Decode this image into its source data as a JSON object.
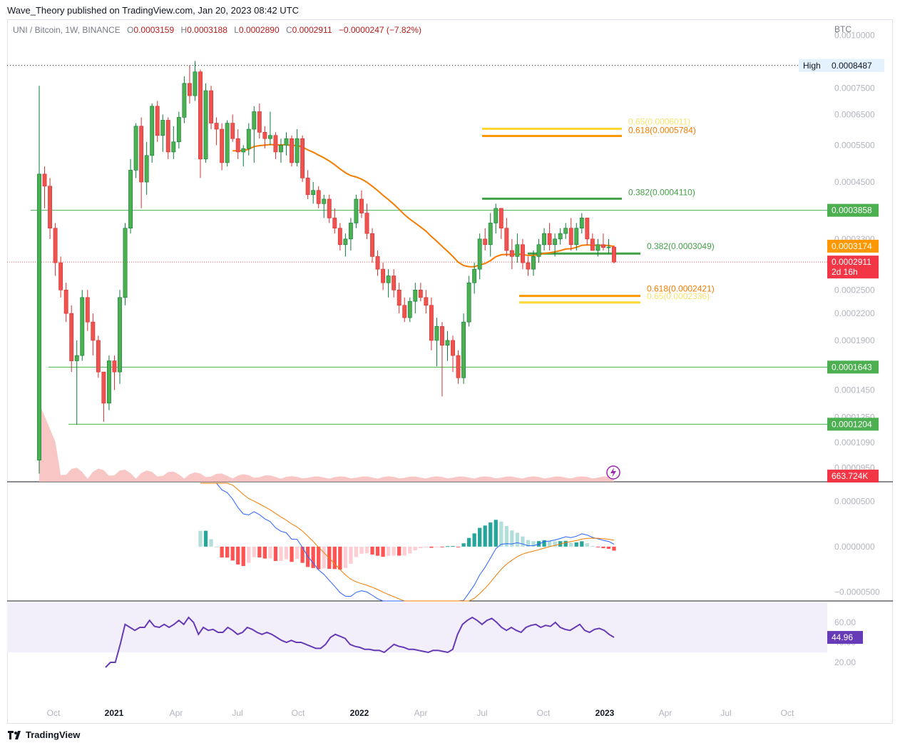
{
  "publisher": "Wave_Theory published on TradingView.com, Jan 20, 2023 08:42 UTC",
  "footer_brand": "TradingView",
  "header": {
    "symbol": "UNI / Bitcoin, 1W, BINANCE",
    "open_label": "O",
    "open": "0.0003159",
    "high_label": "H",
    "high": "0.0003188",
    "low_label": "L",
    "low": "0.0002890",
    "close_label": "C",
    "close": "0.0002911",
    "change": "−0.0000247 (−7.82%)"
  },
  "colors": {
    "up": "#26a69a",
    "up_body": "#0d7a3a",
    "down": "#ef5350",
    "down_body": "#d32f2f",
    "ema": "#f57c00",
    "fib_green": "#43a047",
    "fib_orange": "#ff9800",
    "fib_yellow": "#fdd835",
    "support": "#4caf50",
    "macd": "#2962ff",
    "signal": "#f57c00",
    "rsi": "#673ab7",
    "rsi_band": "#f3effa"
  },
  "chart_data": {
    "type": "candlestick",
    "price_scale": "log",
    "currency_label": "BTC",
    "x_ticks": [
      "Oct",
      "2021",
      "Apr",
      "Jul",
      "Oct",
      "2022",
      "Apr",
      "Jul",
      "Oct",
      "2023",
      "Apr",
      "Jul",
      "Oct"
    ],
    "price_ticks": [
      "0.0010000",
      "0.0007500",
      "0.0006500",
      "0.0005500",
      "0.0004500",
      "0.0003300",
      "0.0002500",
      "0.0002200",
      "0.0001900",
      "0.0001450",
      "0.0001250",
      "0.0001090",
      "0.0000950"
    ],
    "price_labels": [
      {
        "text": "High",
        "value": "0.0008487",
        "style": "high"
      },
      {
        "text": "",
        "value": "0.0003858",
        "style": "green"
      },
      {
        "text": "",
        "value": "0.0003174",
        "style": "orange"
      },
      {
        "text": "2d 16h",
        "value": "0.0002911",
        "style": "red"
      },
      {
        "text": "",
        "value": "0.0001643",
        "style": "green"
      },
      {
        "text": "",
        "value": "0.0001204",
        "style": "green"
      },
      {
        "text": "",
        "value": "663.724K",
        "style": "red"
      }
    ],
    "fib_levels": [
      {
        "label": "0.65(0.0006011)",
        "value": 0.0006011,
        "color": "yellow"
      },
      {
        "label": "0.618(0.0005784)",
        "value": 0.0005784,
        "color": "orange"
      },
      {
        "label": "0.382(0.0004110)",
        "value": 0.000411,
        "color": "green"
      },
      {
        "label": "0.382(0.0003049)",
        "value": 0.0003049,
        "color": "green"
      },
      {
        "label": "0.618(0.0002421)",
        "value": 0.0002421,
        "color": "orange"
      },
      {
        "label": "0.65(0.0002336)",
        "value": 0.0002336,
        "color": "yellow"
      }
    ],
    "horizontal_levels": [
      0.0003858,
      0.0001643,
      0.0001204
    ],
    "all_time_high": 0.0008487,
    "last_price": 0.0002911,
    "ema_last": 0.0003174,
    "candles": [
      {
        "o": 9.9e-05,
        "h": 0.00076,
        "l": 9.2e-05,
        "c": 0.00047
      },
      {
        "o": 0.00047,
        "h": 0.00049,
        "l": 0.00039,
        "c": 0.00044
      },
      {
        "o": 0.00044,
        "h": 0.00046,
        "l": 0.00033,
        "c": 0.00035
      },
      {
        "o": 0.00035,
        "h": 0.00036,
        "l": 0.00027,
        "c": 0.00029
      },
      {
        "o": 0.00029,
        "h": 0.0003,
        "l": 0.00024,
        "c": 0.00025
      },
      {
        "o": 0.00025,
        "h": 0.00026,
        "l": 0.00021,
        "c": 0.00022
      },
      {
        "o": 0.00022,
        "h": 0.00023,
        "l": 0.00016,
        "c": 0.00017
      },
      {
        "o": 0.00017,
        "h": 0.00019,
        "l": 0.00012,
        "c": 0.000175
      },
      {
        "o": 0.000175,
        "h": 0.00025,
        "l": 0.00017,
        "c": 0.00024
      },
      {
        "o": 0.00024,
        "h": 0.00025,
        "l": 0.0002,
        "c": 0.00021
      },
      {
        "o": 0.00021,
        "h": 0.00022,
        "l": 0.000175,
        "c": 0.00019
      },
      {
        "o": 0.00019,
        "h": 0.000195,
        "l": 0.000155,
        "c": 0.00016
      },
      {
        "o": 0.00016,
        "h": 0.00016,
        "l": 0.000122,
        "c": 0.000135
      },
      {
        "o": 0.000135,
        "h": 0.000175,
        "l": 0.00013,
        "c": 0.00017
      },
      {
        "o": 0.00017,
        "h": 0.000175,
        "l": 0.000145,
        "c": 0.00016
      },
      {
        "o": 0.00016,
        "h": 0.00025,
        "l": 0.00015,
        "c": 0.00024
      },
      {
        "o": 0.00024,
        "h": 0.00036,
        "l": 0.00023,
        "c": 0.00035
      },
      {
        "o": 0.00035,
        "h": 0.00051,
        "l": 0.00034,
        "c": 0.00048
      },
      {
        "o": 0.00048,
        "h": 0.00062,
        "l": 0.00046,
        "c": 0.00061
      },
      {
        "o": 0.00061,
        "h": 0.00064,
        "l": 0.00039,
        "c": 0.00045
      },
      {
        "o": 0.00045,
        "h": 0.00056,
        "l": 0.00042,
        "c": 0.00052
      },
      {
        "o": 0.00052,
        "h": 0.00069,
        "l": 0.0005,
        "c": 0.00068
      },
      {
        "o": 0.00068,
        "h": 0.0007,
        "l": 0.00056,
        "c": 0.00058
      },
      {
        "o": 0.00058,
        "h": 0.00065,
        "l": 0.00053,
        "c": 0.00063
      },
      {
        "o": 0.00063,
        "h": 0.00064,
        "l": 0.00051,
        "c": 0.00053
      },
      {
        "o": 0.00053,
        "h": 0.00061,
        "l": 0.00051,
        "c": 0.00056
      },
      {
        "o": 0.00056,
        "h": 0.00066,
        "l": 0.00054,
        "c": 0.00064
      },
      {
        "o": 0.00064,
        "h": 0.0008,
        "l": 0.00062,
        "c": 0.00077
      },
      {
        "o": 0.00077,
        "h": 0.00085,
        "l": 0.00069,
        "c": 0.00072
      },
      {
        "o": 0.00072,
        "h": 0.00087,
        "l": 0.0007,
        "c": 0.00082
      },
      {
        "o": 0.00082,
        "h": 0.00083,
        "l": 0.00046,
        "c": 0.00051
      },
      {
        "o": 0.00051,
        "h": 0.00077,
        "l": 0.0005,
        "c": 0.00074
      },
      {
        "o": 0.00074,
        "h": 0.00076,
        "l": 0.0006,
        "c": 0.00062
      },
      {
        "o": 0.00062,
        "h": 0.00064,
        "l": 0.00055,
        "c": 0.0006
      },
      {
        "o": 0.0006,
        "h": 0.00062,
        "l": 0.00048,
        "c": 0.0005
      },
      {
        "o": 0.0005,
        "h": 0.00063,
        "l": 0.00049,
        "c": 0.00062
      },
      {
        "o": 0.00062,
        "h": 0.00065,
        "l": 0.00056,
        "c": 0.00057
      },
      {
        "o": 0.00057,
        "h": 0.0006,
        "l": 0.00051,
        "c": 0.00053
      },
      {
        "o": 0.00053,
        "h": 0.00055,
        "l": 0.00049,
        "c": 0.00054
      },
      {
        "o": 0.00054,
        "h": 0.00062,
        "l": 0.00052,
        "c": 0.0006
      },
      {
        "o": 0.0006,
        "h": 0.00068,
        "l": 0.0005,
        "c": 0.00066
      },
      {
        "o": 0.00066,
        "h": 0.00069,
        "l": 0.00057,
        "c": 0.00059
      },
      {
        "o": 0.00059,
        "h": 0.00061,
        "l": 0.00054,
        "c": 0.00057
      },
      {
        "o": 0.00057,
        "h": 0.00066,
        "l": 0.00055,
        "c": 0.00058
      },
      {
        "o": 0.00058,
        "h": 0.00059,
        "l": 0.00051,
        "c": 0.00053
      },
      {
        "o": 0.00053,
        "h": 0.00057,
        "l": 0.0005,
        "c": 0.00055
      },
      {
        "o": 0.00055,
        "h": 0.00059,
        "l": 0.00052,
        "c": 0.00057
      },
      {
        "o": 0.00057,
        "h": 0.00058,
        "l": 0.00049,
        "c": 0.0005
      },
      {
        "o": 0.0005,
        "h": 0.0006,
        "l": 0.00049,
        "c": 0.00057
      },
      {
        "o": 0.00057,
        "h": 0.00058,
        "l": 0.00045,
        "c": 0.00046
      },
      {
        "o": 0.00046,
        "h": 0.00048,
        "l": 0.00041,
        "c": 0.00042
      },
      {
        "o": 0.00042,
        "h": 0.00045,
        "l": 0.0004,
        "c": 0.00043
      },
      {
        "o": 0.00043,
        "h": 0.00044,
        "l": 0.00039,
        "c": 0.0004
      },
      {
        "o": 0.0004,
        "h": 0.00042,
        "l": 0.00037,
        "c": 0.00041
      },
      {
        "o": 0.00041,
        "h": 0.00042,
        "l": 0.00036,
        "c": 0.00037
      },
      {
        "o": 0.00037,
        "h": 0.00039,
        "l": 0.00034,
        "c": 0.00035
      },
      {
        "o": 0.00035,
        "h": 0.00036,
        "l": 0.00031,
        "c": 0.00032
      },
      {
        "o": 0.00032,
        "h": 0.00034,
        "l": 0.0003,
        "c": 0.00033
      },
      {
        "o": 0.00033,
        "h": 0.00037,
        "l": 0.00031,
        "c": 0.00036
      },
      {
        "o": 0.00036,
        "h": 0.00042,
        "l": 0.00035,
        "c": 0.00041
      },
      {
        "o": 0.00041,
        "h": 0.00043,
        "l": 0.00037,
        "c": 0.00038
      },
      {
        "o": 0.00038,
        "h": 0.0004,
        "l": 0.00033,
        "c": 0.00034
      },
      {
        "o": 0.00034,
        "h": 0.00035,
        "l": 0.00029,
        "c": 0.0003
      },
      {
        "o": 0.0003,
        "h": 0.00031,
        "l": 0.00027,
        "c": 0.00028
      },
      {
        "o": 0.00028,
        "h": 0.00029,
        "l": 0.00025,
        "c": 0.00026
      },
      {
        "o": 0.00026,
        "h": 0.00028,
        "l": 0.00024,
        "c": 0.00027
      },
      {
        "o": 0.00027,
        "h": 0.00028,
        "l": 0.00024,
        "c": 0.00025
      },
      {
        "o": 0.00025,
        "h": 0.00026,
        "l": 0.00022,
        "c": 0.00023
      },
      {
        "o": 0.00023,
        "h": 0.00024,
        "l": 0.00021,
        "c": 0.000215
      },
      {
        "o": 0.000215,
        "h": 0.00024,
        "l": 0.00021,
        "c": 0.000235
      },
      {
        "o": 0.000235,
        "h": 0.00026,
        "l": 0.00022,
        "c": 0.00025
      },
      {
        "o": 0.00025,
        "h": 0.00026,
        "l": 0.000235,
        "c": 0.00024
      },
      {
        "o": 0.00024,
        "h": 0.00025,
        "l": 0.00022,
        "c": 0.00023
      },
      {
        "o": 0.00023,
        "h": 0.00024,
        "l": 0.00018,
        "c": 0.00019
      },
      {
        "o": 0.00019,
        "h": 0.000215,
        "l": 0.000165,
        "c": 0.000205
      },
      {
        "o": 0.000205,
        "h": 0.00021,
        "l": 0.00014,
        "c": 0.000185
      },
      {
        "o": 0.000185,
        "h": 0.0002,
        "l": 0.00017,
        "c": 0.00019
      },
      {
        "o": 0.00019,
        "h": 0.000195,
        "l": 0.00016,
        "c": 0.000175
      },
      {
        "o": 0.000175,
        "h": 0.00018,
        "l": 0.00015,
        "c": 0.000155
      },
      {
        "o": 0.000155,
        "h": 0.00022,
        "l": 0.00015,
        "c": 0.00021
      },
      {
        "o": 0.00021,
        "h": 0.00027,
        "l": 0.000205,
        "c": 0.00026
      },
      {
        "o": 0.00026,
        "h": 0.00029,
        "l": 0.000245,
        "c": 0.00028
      },
      {
        "o": 0.00028,
        "h": 0.00034,
        "l": 0.000265,
        "c": 0.00033
      },
      {
        "o": 0.00033,
        "h": 0.00035,
        "l": 0.00031,
        "c": 0.00032
      },
      {
        "o": 0.00032,
        "h": 0.00038,
        "l": 0.0003,
        "c": 0.00036
      },
      {
        "o": 0.00036,
        "h": 0.0004,
        "l": 0.00034,
        "c": 0.00039
      },
      {
        "o": 0.00039,
        "h": 0.00039,
        "l": 0.00033,
        "c": 0.00035
      },
      {
        "o": 0.00035,
        "h": 0.00037,
        "l": 0.0003,
        "c": 0.00031
      },
      {
        "o": 0.00031,
        "h": 0.00033,
        "l": 0.00028,
        "c": 0.0003
      },
      {
        "o": 0.0003,
        "h": 0.00034,
        "l": 0.00029,
        "c": 0.00032
      },
      {
        "o": 0.00032,
        "h": 0.00033,
        "l": 0.00028,
        "c": 0.00029
      },
      {
        "o": 0.00029,
        "h": 0.0003,
        "l": 0.00027,
        "c": 0.00028
      },
      {
        "o": 0.00028,
        "h": 0.00031,
        "l": 0.00027,
        "c": 0.0003
      },
      {
        "o": 0.0003,
        "h": 0.00033,
        "l": 0.00029,
        "c": 0.00032
      },
      {
        "o": 0.00032,
        "h": 0.00035,
        "l": 0.00031,
        "c": 0.00034
      },
      {
        "o": 0.00034,
        "h": 0.00036,
        "l": 0.00031,
        "c": 0.00032
      },
      {
        "o": 0.00032,
        "h": 0.00034,
        "l": 0.0003,
        "c": 0.00033
      },
      {
        "o": 0.00033,
        "h": 0.00035,
        "l": 0.00032,
        "c": 0.00034
      },
      {
        "o": 0.00034,
        "h": 0.00036,
        "l": 0.00033,
        "c": 0.00035
      },
      {
        "o": 0.00035,
        "h": 0.00037,
        "l": 0.00031,
        "c": 0.00032
      },
      {
        "o": 0.00032,
        "h": 0.00036,
        "l": 0.00031,
        "c": 0.00035
      },
      {
        "o": 0.00035,
        "h": 0.00038,
        "l": 0.00034,
        "c": 0.00037
      },
      {
        "o": 0.00037,
        "h": 0.00037,
        "l": 0.00032,
        "c": 0.00033
      },
      {
        "o": 0.00033,
        "h": 0.00034,
        "l": 0.00031,
        "c": 0.00031
      },
      {
        "o": 0.00031,
        "h": 0.00033,
        "l": 0.0003,
        "c": 0.00032
      },
      {
        "o": 0.00032,
        "h": 0.00034,
        "l": 0.00031,
        "c": 0.000315
      },
      {
        "o": 0.000315,
        "h": 0.00033,
        "l": 0.000305,
        "c": 0.0003159
      },
      {
        "o": 0.0003159,
        "h": 0.0003188,
        "l": 0.000289,
        "c": 0.0002911
      }
    ],
    "macd": {
      "ticks": [
        "0.0000500",
        "0.0000000",
        "−0.0000500"
      ],
      "ylim": [
        -6e-05,
        7e-05
      ]
    },
    "rsi": {
      "ticks": [
        "60.00",
        "40.00",
        "20.00"
      ],
      "band": [
        30,
        70
      ],
      "last_value": "44.96",
      "values": [
        15,
        20,
        20,
        38,
        58,
        55,
        52,
        55,
        55,
        62,
        56,
        55,
        58,
        55,
        58,
        62,
        58,
        65,
        60,
        48,
        55,
        52,
        53,
        50,
        50,
        55,
        52,
        48,
        50,
        55,
        53,
        50,
        48,
        50,
        48,
        45,
        42,
        40,
        42,
        40,
        40,
        38,
        36,
        34,
        34,
        38,
        45,
        48,
        46,
        44,
        38,
        36,
        35,
        33,
        33,
        32,
        32,
        30,
        34,
        38,
        36,
        35,
        33,
        33,
        32,
        31,
        30,
        32,
        32,
        31,
        30,
        33,
        48,
        58,
        62,
        65,
        62,
        58,
        62,
        64,
        60,
        55,
        52,
        55,
        52,
        50,
        55,
        57,
        58,
        55,
        57,
        56,
        60,
        55,
        53,
        52,
        55,
        58,
        52,
        50,
        53,
        54,
        52,
        48,
        45
      ]
    },
    "volume_last": "663.724K"
  }
}
